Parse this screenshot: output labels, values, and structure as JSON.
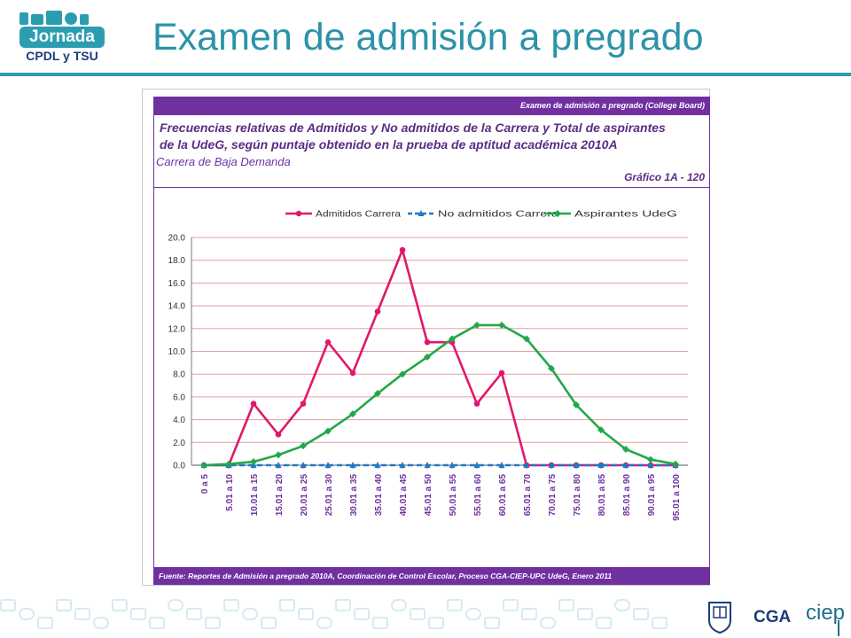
{
  "slide": {
    "logo_top": "Jornada",
    "logo_bottom": "CPDL y TSU",
    "title": "Examen de admisión a pregrado"
  },
  "figure": {
    "band_top": "Examen de admisión a pregrado (College Board)",
    "heading_line1": "Frecuencias relativas de Admitidos y No admitidos de la Carrera y Total de aspirantes",
    "heading_line2": "de la UdeG, según puntaje obtenido en la prueba de aptitud académica 2010A",
    "subheading": "Carrera de Baja Demanda",
    "grafico": "Gráfico 1A - 120",
    "source": "Fuente: Reportes de Admisión a pregrado 2010A, Coordinación de Control Escolar, Proceso  CGA-CIEP-UPC UdeG, Enero 2011"
  },
  "chart_data": {
    "type": "line",
    "categories": [
      "0  a  5",
      "5.01  a  10",
      "10.01  a  15",
      "15.01  a  20",
      "20.01  a  25",
      "25.01  a  30",
      "30.01  a  35",
      "35.01  a  40",
      "40.01  a  45",
      "45.01  a  50",
      "50.01  a  55",
      "55.01  a  60",
      "60.01  a  65",
      "65.01  a  70",
      "70.01  a  75",
      "75.01  a  80",
      "80.01  a  85",
      "85.01  a  90",
      "90.01  a  95",
      "95.01  a  100"
    ],
    "series": [
      {
        "name": "Admitidos  Carrera",
        "color": "#e0186c",
        "marker": "circle",
        "values": [
          0,
          0,
          5.4,
          2.7,
          5.4,
          10.8,
          8.1,
          13.5,
          18.9,
          10.8,
          10.8,
          5.4,
          8.1,
          0,
          0,
          0,
          0,
          0,
          0,
          0
        ]
      },
      {
        "name": "No admitidos Carrera",
        "color": "#1f78c8",
        "marker": "triangle",
        "dashed": true,
        "values": [
          0,
          0,
          0,
          0,
          0,
          0,
          0,
          0,
          0,
          0,
          0,
          0,
          0,
          0,
          0,
          0,
          0,
          0,
          0,
          0
        ]
      },
      {
        "name": "Aspirantes UdeG",
        "color": "#22a84a",
        "marker": "diamond",
        "values": [
          0,
          0.1,
          0.3,
          0.9,
          1.7,
          3.0,
          4.5,
          6.3,
          8.0,
          9.5,
          11.1,
          12.3,
          12.3,
          11.1,
          8.5,
          5.3,
          3.1,
          1.4,
          0.5,
          0.1
        ]
      }
    ],
    "ylim": [
      0,
      20
    ],
    "yticks": [
      "0.0",
      "2.0",
      "4.0",
      "6.0",
      "8.0",
      "10.0",
      "12.0",
      "14.0",
      "16.0",
      "18.0",
      "20.0"
    ],
    "grid": true,
    "legend": "top"
  }
}
